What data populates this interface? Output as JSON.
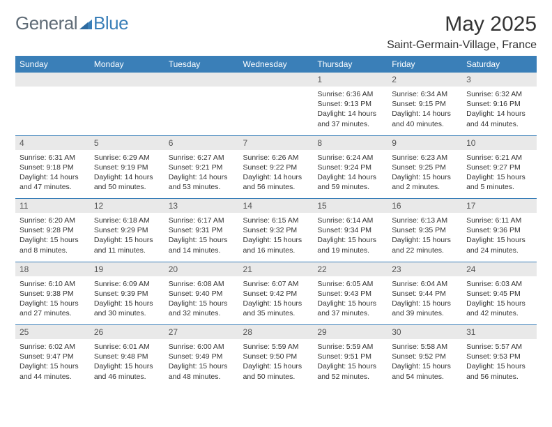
{
  "logo": {
    "part1": "General",
    "part2": "Blue"
  },
  "header": {
    "month_title": "May 2025",
    "location": "Saint-Germain-Village, France"
  },
  "colors": {
    "header_bg": "#3a7fb8",
    "grey_row": "#e9e9e9",
    "text": "#333333",
    "logo_grey": "#5f6b76",
    "logo_blue": "#3a7fb8"
  },
  "weekdays": [
    "Sunday",
    "Monday",
    "Tuesday",
    "Wednesday",
    "Thursday",
    "Friday",
    "Saturday"
  ],
  "weeks": [
    {
      "days": [
        {
          "blank": true
        },
        {
          "blank": true
        },
        {
          "blank": true
        },
        {
          "blank": true
        },
        {
          "num": "1",
          "sunrise": "Sunrise: 6:36 AM",
          "sunset": "Sunset: 9:13 PM",
          "daylight": "Daylight: 14 hours and 37 minutes."
        },
        {
          "num": "2",
          "sunrise": "Sunrise: 6:34 AM",
          "sunset": "Sunset: 9:15 PM",
          "daylight": "Daylight: 14 hours and 40 minutes."
        },
        {
          "num": "3",
          "sunrise": "Sunrise: 6:32 AM",
          "sunset": "Sunset: 9:16 PM",
          "daylight": "Daylight: 14 hours and 44 minutes."
        }
      ]
    },
    {
      "days": [
        {
          "num": "4",
          "sunrise": "Sunrise: 6:31 AM",
          "sunset": "Sunset: 9:18 PM",
          "daylight": "Daylight: 14 hours and 47 minutes."
        },
        {
          "num": "5",
          "sunrise": "Sunrise: 6:29 AM",
          "sunset": "Sunset: 9:19 PM",
          "daylight": "Daylight: 14 hours and 50 minutes."
        },
        {
          "num": "6",
          "sunrise": "Sunrise: 6:27 AM",
          "sunset": "Sunset: 9:21 PM",
          "daylight": "Daylight: 14 hours and 53 minutes."
        },
        {
          "num": "7",
          "sunrise": "Sunrise: 6:26 AM",
          "sunset": "Sunset: 9:22 PM",
          "daylight": "Daylight: 14 hours and 56 minutes."
        },
        {
          "num": "8",
          "sunrise": "Sunrise: 6:24 AM",
          "sunset": "Sunset: 9:24 PM",
          "daylight": "Daylight: 14 hours and 59 minutes."
        },
        {
          "num": "9",
          "sunrise": "Sunrise: 6:23 AM",
          "sunset": "Sunset: 9:25 PM",
          "daylight": "Daylight: 15 hours and 2 minutes."
        },
        {
          "num": "10",
          "sunrise": "Sunrise: 6:21 AM",
          "sunset": "Sunset: 9:27 PM",
          "daylight": "Daylight: 15 hours and 5 minutes."
        }
      ]
    },
    {
      "days": [
        {
          "num": "11",
          "sunrise": "Sunrise: 6:20 AM",
          "sunset": "Sunset: 9:28 PM",
          "daylight": "Daylight: 15 hours and 8 minutes."
        },
        {
          "num": "12",
          "sunrise": "Sunrise: 6:18 AM",
          "sunset": "Sunset: 9:29 PM",
          "daylight": "Daylight: 15 hours and 11 minutes."
        },
        {
          "num": "13",
          "sunrise": "Sunrise: 6:17 AM",
          "sunset": "Sunset: 9:31 PM",
          "daylight": "Daylight: 15 hours and 14 minutes."
        },
        {
          "num": "14",
          "sunrise": "Sunrise: 6:15 AM",
          "sunset": "Sunset: 9:32 PM",
          "daylight": "Daylight: 15 hours and 16 minutes."
        },
        {
          "num": "15",
          "sunrise": "Sunrise: 6:14 AM",
          "sunset": "Sunset: 9:34 PM",
          "daylight": "Daylight: 15 hours and 19 minutes."
        },
        {
          "num": "16",
          "sunrise": "Sunrise: 6:13 AM",
          "sunset": "Sunset: 9:35 PM",
          "daylight": "Daylight: 15 hours and 22 minutes."
        },
        {
          "num": "17",
          "sunrise": "Sunrise: 6:11 AM",
          "sunset": "Sunset: 9:36 PM",
          "daylight": "Daylight: 15 hours and 24 minutes."
        }
      ]
    },
    {
      "days": [
        {
          "num": "18",
          "sunrise": "Sunrise: 6:10 AM",
          "sunset": "Sunset: 9:38 PM",
          "daylight": "Daylight: 15 hours and 27 minutes."
        },
        {
          "num": "19",
          "sunrise": "Sunrise: 6:09 AM",
          "sunset": "Sunset: 9:39 PM",
          "daylight": "Daylight: 15 hours and 30 minutes."
        },
        {
          "num": "20",
          "sunrise": "Sunrise: 6:08 AM",
          "sunset": "Sunset: 9:40 PM",
          "daylight": "Daylight: 15 hours and 32 minutes."
        },
        {
          "num": "21",
          "sunrise": "Sunrise: 6:07 AM",
          "sunset": "Sunset: 9:42 PM",
          "daylight": "Daylight: 15 hours and 35 minutes."
        },
        {
          "num": "22",
          "sunrise": "Sunrise: 6:05 AM",
          "sunset": "Sunset: 9:43 PM",
          "daylight": "Daylight: 15 hours and 37 minutes."
        },
        {
          "num": "23",
          "sunrise": "Sunrise: 6:04 AM",
          "sunset": "Sunset: 9:44 PM",
          "daylight": "Daylight: 15 hours and 39 minutes."
        },
        {
          "num": "24",
          "sunrise": "Sunrise: 6:03 AM",
          "sunset": "Sunset: 9:45 PM",
          "daylight": "Daylight: 15 hours and 42 minutes."
        }
      ]
    },
    {
      "days": [
        {
          "num": "25",
          "sunrise": "Sunrise: 6:02 AM",
          "sunset": "Sunset: 9:47 PM",
          "daylight": "Daylight: 15 hours and 44 minutes."
        },
        {
          "num": "26",
          "sunrise": "Sunrise: 6:01 AM",
          "sunset": "Sunset: 9:48 PM",
          "daylight": "Daylight: 15 hours and 46 minutes."
        },
        {
          "num": "27",
          "sunrise": "Sunrise: 6:00 AM",
          "sunset": "Sunset: 9:49 PM",
          "daylight": "Daylight: 15 hours and 48 minutes."
        },
        {
          "num": "28",
          "sunrise": "Sunrise: 5:59 AM",
          "sunset": "Sunset: 9:50 PM",
          "daylight": "Daylight: 15 hours and 50 minutes."
        },
        {
          "num": "29",
          "sunrise": "Sunrise: 5:59 AM",
          "sunset": "Sunset: 9:51 PM",
          "daylight": "Daylight: 15 hours and 52 minutes."
        },
        {
          "num": "30",
          "sunrise": "Sunrise: 5:58 AM",
          "sunset": "Sunset: 9:52 PM",
          "daylight": "Daylight: 15 hours and 54 minutes."
        },
        {
          "num": "31",
          "sunrise": "Sunrise: 5:57 AM",
          "sunset": "Sunset: 9:53 PM",
          "daylight": "Daylight: 15 hours and 56 minutes."
        }
      ]
    }
  ]
}
